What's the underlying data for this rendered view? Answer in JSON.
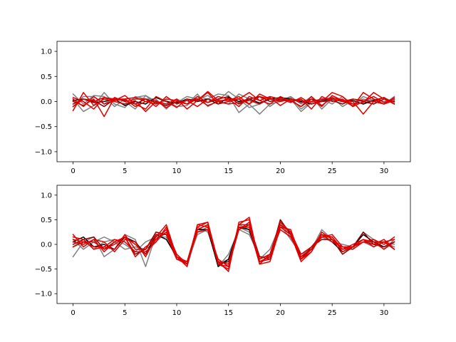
{
  "chart_data": [
    {
      "type": "line",
      "x": [
        0,
        1,
        2,
        3,
        4,
        5,
        6,
        7,
        8,
        9,
        10,
        11,
        12,
        13,
        14,
        15,
        16,
        17,
        18,
        19,
        20,
        21,
        22,
        23,
        24,
        25,
        26,
        27,
        28,
        29,
        30,
        31
      ],
      "xlim": [
        -1.55,
        32.55
      ],
      "ylim": [
        -1.2,
        1.2
      ],
      "x_ticks": [
        0,
        5,
        10,
        15,
        20,
        25,
        30
      ],
      "y_ticks": [
        -1.0,
        -0.5,
        0.0,
        0.5,
        1.0
      ],
      "x_tick_labels": [
        "0",
        "5",
        "10",
        "15",
        "20",
        "25",
        "30"
      ],
      "y_tick_labels": [
        "−1.0",
        "−0.5",
        "0.0",
        "0.5",
        "1.0"
      ],
      "grid": false,
      "series": [
        {
          "color": "#808080",
          "values": [
            0.15,
            -0.05,
            0.12,
            0.1,
            -0.1,
            0.05,
            0.08,
            0.12,
            -0.05,
            0.02,
            -0.1,
            -0.08,
            0.1,
            0.05,
            0.15,
            0.12,
            -0.22,
            -0.05,
            -0.25,
            -0.05,
            0.0,
            0.05,
            -0.2,
            -0.02,
            0.05,
            0.08,
            -0.1,
            0.02,
            -0.05,
            0.05,
            0.0,
            0.05
          ]
        },
        {
          "color": "#808080",
          "values": [
            0.05,
            -0.2,
            -0.08,
            0.18,
            -0.05,
            -0.12,
            0.1,
            0.05,
            0.05,
            -0.15,
            0.05,
            -0.05,
            0.15,
            -0.1,
            0.02,
            0.2,
            0.05,
            -0.12,
            -0.05,
            0.05,
            0.02,
            0.1,
            -0.05,
            0.1,
            -0.15,
            0.05,
            0.0,
            -0.08,
            0.1,
            0.02,
            -0.05,
            0.1
          ]
        },
        {
          "color": "#808080",
          "values": [
            -0.1,
            0.1,
            0.1,
            -0.05,
            0.08,
            0.0,
            -0.15,
            0.12,
            0.0,
            -0.05,
            -0.02,
            0.1,
            0.05,
            0.12,
            0.0,
            -0.05,
            0.15,
            0.05,
            0.1,
            -0.1,
            0.05,
            0.08,
            -0.15,
            0.0,
            0.05,
            -0.05,
            0.1,
            -0.05,
            0.05,
            0.0,
            0.08,
            -0.02
          ]
        },
        {
          "color": "#000000",
          "values": [
            0.02,
            0.05,
            -0.02,
            0.0,
            0.05,
            -0.08,
            0.0,
            -0.05,
            0.08,
            0.0,
            -0.03,
            0.05,
            0.0,
            0.05,
            -0.05,
            0.08,
            0.0,
            0.05,
            -0.03,
            0.05,
            0.08,
            0.05,
            0.0,
            -0.05,
            0.02,
            0.05,
            0.0,
            0.02,
            -0.05,
            0.02,
            0.08,
            -0.05
          ]
        },
        {
          "color": "#8b0000",
          "values": [
            -0.05,
            0.05,
            0.02,
            -0.1,
            0.05,
            0.02,
            -0.05,
            0.05,
            -0.02,
            -0.08,
            0.0,
            0.02,
            0.05,
            -0.02,
            0.05,
            0.1,
            -0.05,
            0.05,
            0.1,
            0.0,
            0.05,
            0.02,
            -0.1,
            0.05,
            0.0,
            0.02,
            -0.05,
            0.05,
            0.0,
            -0.05,
            0.05,
            0.0
          ]
        },
        {
          "color": "#e00000",
          "values": [
            -0.18,
            0.18,
            -0.08,
            0.05,
            0.0,
            -0.05,
            0.02,
            -0.2,
            0.0,
            -0.05,
            0.05,
            -0.15,
            0.02,
            0.18,
            -0.05,
            0.0,
            0.05,
            0.18,
            0.02,
            0.1,
            0.05,
            -0.02,
            0.08,
            -0.05,
            0.0,
            0.18,
            0.1,
            -0.1,
            0.18,
            0.05,
            -0.05,
            0.02
          ]
        },
        {
          "color": "#e00000",
          "values": [
            0.08,
            0.0,
            -0.15,
            0.08,
            0.02,
            0.12,
            -0.05,
            -0.15,
            0.1,
            0.0,
            -0.12,
            0.05,
            0.02,
            0.2,
            0.02,
            0.02,
            0.1,
            -0.05,
            0.15,
            0.05,
            0.02,
            0.02,
            -0.1,
            0.1,
            -0.08,
            0.08,
            0.02,
            -0.05,
            -0.02,
            0.18,
            0.05,
            -0.05
          ]
        },
        {
          "color": "#e00000",
          "values": [
            0.0,
            -0.08,
            0.05,
            -0.3,
            0.08,
            0.0,
            0.05,
            0.05,
            -0.1,
            0.1,
            -0.05,
            0.02,
            -0.1,
            0.05,
            0.0,
            0.05,
            -0.1,
            0.1,
            0.02,
            -0.05,
            0.1,
            0.0,
            0.05,
            -0.15,
            0.1,
            0.0,
            0.05,
            -0.1,
            0.0,
            0.1,
            -0.02,
            0.05
          ]
        },
        {
          "color": "#e00000",
          "values": [
            -0.1,
            0.05,
            0.0,
            0.08,
            0.05,
            0.05,
            -0.1,
            0.0,
            0.02,
            -0.12,
            0.0,
            -0.05,
            0.05,
            -0.08,
            0.0,
            -0.05,
            -0.02,
            0.02,
            -0.05,
            0.08,
            -0.08,
            0.05,
            -0.02,
            0.05,
            -0.1,
            0.12,
            0.02,
            0.0,
            -0.25,
            0.0,
            0.08,
            -0.05
          ]
        },
        {
          "color": "#e00000",
          "values": [
            0.05,
            -0.1,
            0.1,
            -0.05,
            0.02,
            0.05,
            0.08,
            0.0,
            -0.05,
            0.05,
            0.02,
            -0.05,
            0.1,
            -0.02,
            0.1,
            0.05,
            0.05,
            -0.05,
            0.1,
            0.05,
            0.0,
            0.05,
            0.02,
            0.0,
            0.05,
            0.05,
            0.0,
            0.05,
            0.02,
            0.0,
            -0.05,
            0.08
          ]
        }
      ]
    },
    {
      "type": "line",
      "x": [
        0,
        1,
        2,
        3,
        4,
        5,
        6,
        7,
        8,
        9,
        10,
        11,
        12,
        13,
        14,
        15,
        16,
        17,
        18,
        19,
        20,
        21,
        22,
        23,
        24,
        25,
        26,
        27,
        28,
        29,
        30,
        31
      ],
      "xlim": [
        -1.55,
        32.55
      ],
      "ylim": [
        -1.2,
        1.2
      ],
      "x_ticks": [
        0,
        5,
        10,
        15,
        20,
        25,
        30
      ],
      "y_ticks": [
        -1.0,
        -0.5,
        0.0,
        0.5,
        1.0
      ],
      "x_tick_labels": [
        "0",
        "5",
        "10",
        "15",
        "20",
        "25",
        "30"
      ],
      "y_tick_labels": [
        "−1.0",
        "−0.5",
        "0.0",
        "0.5",
        "1.0"
      ],
      "grid": false,
      "series": [
        {
          "color": "#808080",
          "values": [
            -0.25,
            0.05,
            0.15,
            -0.25,
            -0.1,
            0.2,
            0.1,
            -0.45,
            0.2,
            0.2,
            -0.25,
            -0.45,
            0.25,
            0.35,
            -0.45,
            -0.2,
            0.3,
            0.2,
            -0.25,
            -0.25,
            0.45,
            0.25,
            -0.3,
            -0.1,
            0.3,
            0.1,
            -0.1,
            -0.1,
            0.25,
            0.1,
            -0.1,
            0.1
          ]
        },
        {
          "color": "#808080",
          "values": [
            0.1,
            -0.1,
            0.05,
            0.15,
            0.05,
            -0.1,
            -0.05,
            -0.1,
            0.05,
            0.25,
            -0.2,
            -0.4,
            0.2,
            0.3,
            -0.4,
            -0.3,
            0.35,
            0.25,
            -0.3,
            -0.1,
            0.4,
            0.1,
            -0.2,
            -0.1,
            0.15,
            0.05,
            0.0,
            -0.05,
            0.05,
            -0.05,
            0.05,
            0.0
          ]
        },
        {
          "color": "#808080",
          "values": [
            -0.05,
            0.1,
            -0.1,
            0.05,
            0.1,
            0.0,
            -0.15,
            0.05,
            0.15,
            0.15,
            -0.3,
            -0.35,
            0.35,
            0.25,
            -0.35,
            -0.35,
            0.4,
            0.3,
            -0.3,
            -0.2,
            0.45,
            0.15,
            -0.25,
            -0.05,
            0.2,
            0.05,
            -0.05,
            -0.05,
            0.1,
            0.0,
            0.05,
            -0.05
          ]
        },
        {
          "color": "#000000",
          "values": [
            0.05,
            0.15,
            -0.05,
            0.0,
            -0.1,
            0.15,
            0.05,
            -0.2,
            0.2,
            0.1,
            -0.25,
            -0.4,
            0.3,
            0.3,
            -0.45,
            -0.3,
            0.35,
            0.3,
            -0.35,
            -0.25,
            0.5,
            0.2,
            -0.25,
            -0.1,
            0.2,
            0.05,
            -0.15,
            -0.05,
            0.2,
            0.05,
            -0.05,
            0.05
          ]
        },
        {
          "color": "#8b0000",
          "values": [
            0.0,
            0.1,
            0.15,
            -0.1,
            0.05,
            0.15,
            -0.2,
            -0.1,
            0.25,
            0.2,
            -0.25,
            -0.4,
            0.3,
            0.4,
            -0.4,
            -0.35,
            0.3,
            0.4,
            -0.25,
            -0.3,
            0.5,
            0.2,
            -0.3,
            -0.05,
            0.1,
            0.1,
            -0.2,
            -0.05,
            0.25,
            0.0,
            -0.05,
            0.05
          ]
        },
        {
          "color": "#e00000",
          "values": [
            0.2,
            -0.05,
            0.1,
            -0.15,
            0.05,
            0.15,
            -0.25,
            -0.05,
            0.1,
            0.3,
            -0.2,
            -0.4,
            0.4,
            0.45,
            -0.35,
            -0.55,
            0.45,
            0.5,
            -0.35,
            -0.3,
            0.35,
            0.2,
            -0.35,
            -0.15,
            0.2,
            0.15,
            -0.15,
            -0.05,
            0.05,
            0.1,
            0.0,
            0.15
          ]
        },
        {
          "color": "#e00000",
          "values": [
            0.1,
            0.05,
            -0.05,
            -0.05,
            -0.1,
            0.2,
            -0.1,
            -0.1,
            0.2,
            0.2,
            -0.3,
            -0.35,
            0.35,
            0.45,
            -0.4,
            -0.5,
            0.4,
            0.55,
            -0.4,
            -0.2,
            0.45,
            0.25,
            -0.3,
            -0.15,
            0.25,
            0.1,
            -0.1,
            0.0,
            0.1,
            0.05,
            0.05,
            -0.1
          ]
        },
        {
          "color": "#e00000",
          "values": [
            0.05,
            0.0,
            0.1,
            0.05,
            -0.15,
            0.1,
            0.05,
            -0.25,
            0.15,
            0.4,
            -0.25,
            -0.45,
            0.4,
            0.35,
            -0.4,
            -0.45,
            0.35,
            0.35,
            -0.4,
            -0.35,
            0.35,
            0.3,
            -0.3,
            -0.1,
            0.15,
            0.2,
            -0.05,
            -0.1,
            0.05,
            0.05,
            -0.1,
            0.05
          ]
        },
        {
          "color": "#e00000",
          "values": [
            -0.05,
            0.05,
            0.05,
            -0.1,
            0.0,
            0.15,
            0.0,
            -0.2,
            0.1,
            0.25,
            -0.25,
            -0.35,
            0.25,
            0.3,
            -0.3,
            -0.45,
            0.3,
            0.45,
            -0.35,
            -0.25,
            0.3,
            0.15,
            -0.25,
            -0.1,
            0.15,
            0.15,
            -0.1,
            -0.05,
            0.05,
            0.0,
            0.1,
            -0.1
          ]
        },
        {
          "color": "#e00000",
          "values": [
            0.15,
            0.1,
            -0.1,
            -0.05,
            0.1,
            0.05,
            -0.15,
            -0.15,
            0.05,
            0.35,
            -0.3,
            -0.4,
            0.3,
            0.4,
            -0.35,
            -0.4,
            0.4,
            0.4,
            -0.3,
            -0.2,
            0.4,
            0.25,
            -0.2,
            -0.05,
            0.2,
            0.05,
            -0.05,
            -0.05,
            0.1,
            -0.05,
            0.05,
            0.1
          ]
        }
      ]
    }
  ]
}
